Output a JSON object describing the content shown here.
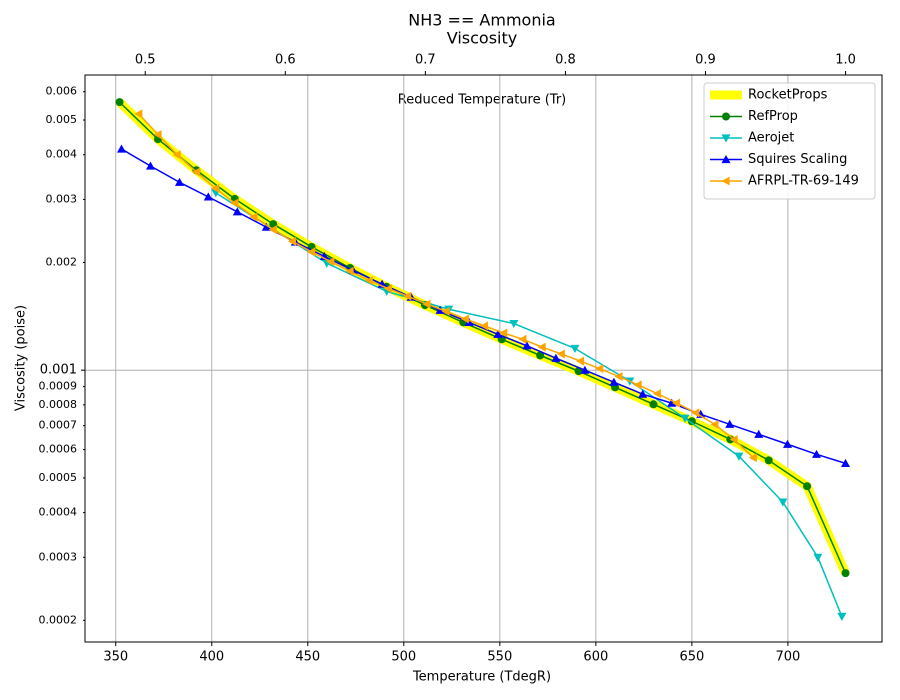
{
  "chart_data": {
    "type": "line",
    "title": "NH3 == Ammonia",
    "subtitle": "Viscosity",
    "xlabel": "Temperature (TdegR)",
    "ylabel": "Viscosity (poise)",
    "x2label": "Reduced Temperature (Tr)",
    "xlim": [
      334,
      749
    ],
    "xticks": [
      350,
      400,
      450,
      500,
      550,
      600,
      650,
      700
    ],
    "x2lim": [
      0.457,
      1.026
    ],
    "x2ticks": [
      0.5,
      0.6,
      0.7,
      0.8,
      0.9,
      {
        "value": 1,
        "label": "1.0"
      }
    ],
    "yscale": "log",
    "ylim": [
      0.000174,
      0.00668
    ],
    "yticks": [
      0.006,
      0.005,
      0.004,
      0.003,
      0.002,
      0.001,
      0.0009,
      0.0008,
      0.0007,
      0.0006,
      0.0005,
      0.0004,
      0.0003,
      0.0002
    ],
    "grid": true,
    "legend": "upper right",
    "series": [
      {
        "name": "RocketProps",
        "color": "#ffff00",
        "marker": "none",
        "linewidth": 9,
        "x": [
          352,
          372,
          392,
          412,
          432,
          452,
          472,
          491,
          511,
          531,
          551,
          571,
          591,
          610,
          630,
          650,
          670,
          690,
          710,
          730
        ],
        "values": [
          0.00561,
          0.00442,
          0.00362,
          0.00301,
          0.00256,
          0.00221,
          0.00193,
          0.00171,
          0.00152,
          0.00136,
          0.00122,
          0.0011,
          0.000994,
          0.000896,
          0.000803,
          0.00072,
          0.000641,
          0.00056,
          0.000474,
          0.000271
        ]
      },
      {
        "name": "RefProp",
        "color": "#008000",
        "marker": "circle",
        "linewidth": 1.5,
        "x": [
          352,
          372,
          392,
          412,
          432,
          452,
          472,
          491,
          511,
          531,
          551,
          571,
          591,
          610,
          630,
          650,
          670,
          690,
          710,
          730
        ],
        "values": [
          0.00561,
          0.00442,
          0.00362,
          0.00301,
          0.00256,
          0.00221,
          0.00193,
          0.00171,
          0.00152,
          0.00136,
          0.00122,
          0.0011,
          0.000994,
          0.000896,
          0.000803,
          0.00072,
          0.000641,
          0.00056,
          0.000474,
          0.000271
        ]
      },
      {
        "name": "Aerojet",
        "color": "#00bfbf",
        "marker": "triangle-down",
        "linewidth": 1.5,
        "x": [
          402.1,
          459.9,
          491.1,
          523.4,
          557.3,
          589.1,
          617.7,
          646.4,
          674.5,
          697.4,
          715.6,
          728.1
        ],
        "values": [
          0.00313,
          0.00199,
          0.00166,
          0.00148,
          0.00135,
          0.00115,
          0.000932,
          0.000734,
          0.000575,
          0.000428,
          0.0003,
          0.000205
        ]
      },
      {
        "name": "Squires Scaling",
        "color": "#0000ff",
        "marker": "triangle-up",
        "linewidth": 1.5,
        "x": [
          353,
          368.1,
          383.2,
          398.2,
          413.3,
          428.4,
          443.5,
          458.6,
          473.6,
          488.7,
          503.8,
          518.9,
          534,
          549,
          564.1,
          579.2,
          594.3,
          609.4,
          624.4,
          639.5,
          654.6,
          669.7,
          684.8,
          699.8,
          714.9,
          730
        ],
        "values": [
          0.00415,
          0.00372,
          0.00335,
          0.00305,
          0.00277,
          0.00251,
          0.00228,
          0.00208,
          0.0019,
          0.00174,
          0.0016,
          0.00147,
          0.00136,
          0.00126,
          0.00117,
          0.00108,
          0.001,
          0.000926,
          0.000857,
          0.000809,
          0.000753,
          0.000706,
          0.000662,
          0.000621,
          0.000582,
          0.000549
        ]
      },
      {
        "name": "AFRPL-TR-69-149",
        "color": "#ffa500",
        "marker": "triangle-left",
        "linewidth": 1.5,
        "x": [
          362,
          372,
          382,
          392,
          402,
          412,
          422,
          432,
          442,
          452,
          462,
          472,
          482,
          492,
          502,
          512,
          522,
          532,
          542,
          552,
          562,
          572,
          582,
          592,
          602,
          612,
          622,
          632,
          642,
          652,
          662,
          672,
          682
        ],
        "values": [
          0.0052,
          0.00455,
          0.004,
          0.00358,
          0.00322,
          0.00293,
          0.00268,
          0.00247,
          0.00229,
          0.00214,
          0.00201,
          0.00189,
          0.00178,
          0.00169,
          0.00161,
          0.00153,
          0.00146,
          0.00139,
          0.00133,
          0.00127,
          0.00122,
          0.00116,
          0.00111,
          0.00106,
          0.00101,
          0.00096,
          0.00091,
          0.00086,
          0.00081,
          0.00076,
          0.000705,
          0.00064,
          0.00057
        ]
      }
    ]
  }
}
